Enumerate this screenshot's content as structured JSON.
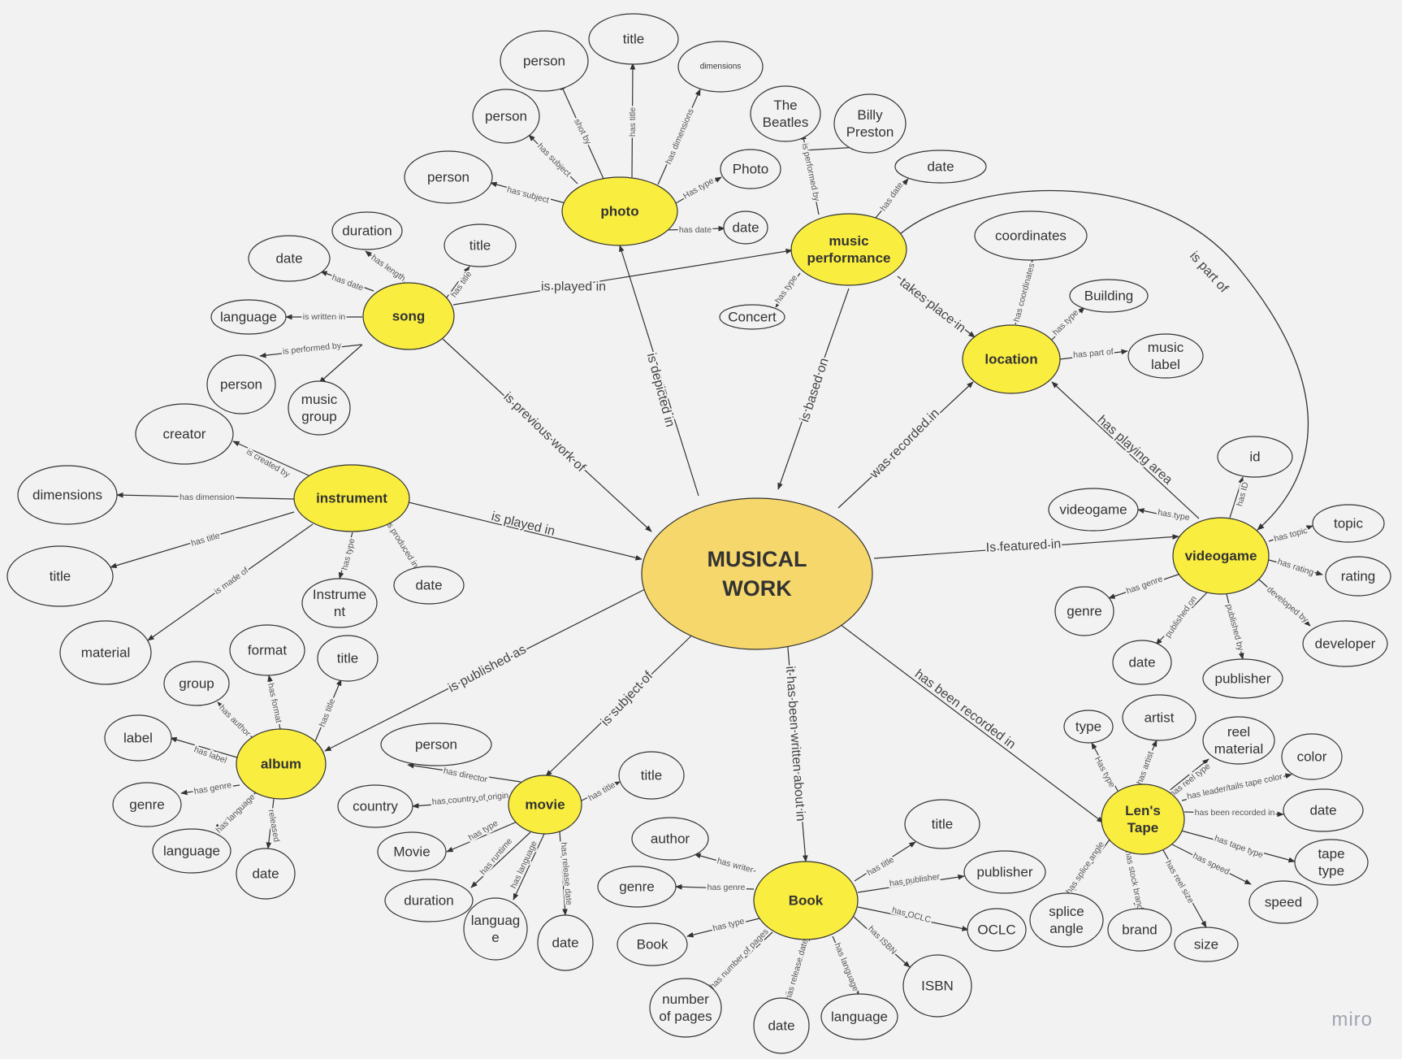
{
  "colors": {
    "background": "#f2f2f2",
    "hub_fill": "#f9ed3f",
    "center_fill": "#f5d76b",
    "node_fill": "#f2f2f2",
    "stroke": "#333333"
  },
  "watermark": "miro",
  "center": {
    "id": "musical_work",
    "lines": [
      "MUSICAL",
      "WORK"
    ]
  },
  "hubs": [
    {
      "id": "photo",
      "lines": [
        "photo"
      ]
    },
    {
      "id": "music_performance",
      "lines": [
        "music",
        "performance"
      ]
    },
    {
      "id": "song",
      "lines": [
        "song"
      ]
    },
    {
      "id": "location",
      "lines": [
        "location"
      ]
    },
    {
      "id": "instrument",
      "lines": [
        "instrument"
      ]
    },
    {
      "id": "videogame",
      "lines": [
        "videogame"
      ]
    },
    {
      "id": "album",
      "lines": [
        "album"
      ]
    },
    {
      "id": "movie",
      "lines": [
        "movie"
      ]
    },
    {
      "id": "book",
      "lines": [
        "Book"
      ]
    },
    {
      "id": "lens_tape",
      "lines": [
        "Len's",
        "Tape"
      ]
    }
  ],
  "nodes": [
    {
      "id": "ph_person1",
      "lines": [
        "person"
      ]
    },
    {
      "id": "ph_title",
      "lines": [
        "title"
      ]
    },
    {
      "id": "ph_dimensions",
      "lines": [
        "dimensions"
      ]
    },
    {
      "id": "ph_person2",
      "lines": [
        "person"
      ]
    },
    {
      "id": "ph_person3",
      "lines": [
        "person"
      ]
    },
    {
      "id": "ph_type",
      "lines": [
        "Photo"
      ]
    },
    {
      "id": "ph_date",
      "lines": [
        "date"
      ]
    },
    {
      "id": "mp_beatles",
      "lines": [
        "The",
        "Beatles"
      ]
    },
    {
      "id": "mp_billy",
      "lines": [
        "Billy",
        "Preston"
      ]
    },
    {
      "id": "mp_date",
      "lines": [
        "date"
      ]
    },
    {
      "id": "mp_concert",
      "lines": [
        "Concert"
      ]
    },
    {
      "id": "so_duration",
      "lines": [
        "duration"
      ]
    },
    {
      "id": "so_date",
      "lines": [
        "date"
      ]
    },
    {
      "id": "so_title",
      "lines": [
        "title"
      ]
    },
    {
      "id": "so_language",
      "lines": [
        "language"
      ]
    },
    {
      "id": "so_person",
      "lines": [
        "person"
      ]
    },
    {
      "id": "so_group",
      "lines": [
        "music",
        "group"
      ]
    },
    {
      "id": "lo_coords",
      "lines": [
        "coordinates"
      ]
    },
    {
      "id": "lo_building",
      "lines": [
        "Building"
      ]
    },
    {
      "id": "lo_label",
      "lines": [
        "music",
        "label"
      ]
    },
    {
      "id": "in_creator",
      "lines": [
        "creator"
      ]
    },
    {
      "id": "in_dimensions",
      "lines": [
        "dimensions"
      ]
    },
    {
      "id": "in_title",
      "lines": [
        "title"
      ]
    },
    {
      "id": "in_material",
      "lines": [
        "material"
      ]
    },
    {
      "id": "in_type",
      "lines": [
        "Instrume",
        "nt"
      ]
    },
    {
      "id": "in_date",
      "lines": [
        "date"
      ]
    },
    {
      "id": "vg_id",
      "lines": [
        "id"
      ]
    },
    {
      "id": "vg_type",
      "lines": [
        "videogame"
      ]
    },
    {
      "id": "vg_topic",
      "lines": [
        "topic"
      ]
    },
    {
      "id": "vg_rating",
      "lines": [
        "rating"
      ]
    },
    {
      "id": "vg_genre",
      "lines": [
        "genre"
      ]
    },
    {
      "id": "vg_date",
      "lines": [
        "date"
      ]
    },
    {
      "id": "vg_publisher",
      "lines": [
        "publisher"
      ]
    },
    {
      "id": "vg_developer",
      "lines": [
        "developer"
      ]
    },
    {
      "id": "al_format",
      "lines": [
        "format"
      ]
    },
    {
      "id": "al_title",
      "lines": [
        "title"
      ]
    },
    {
      "id": "al_group",
      "lines": [
        "group"
      ]
    },
    {
      "id": "al_label",
      "lines": [
        "label"
      ]
    },
    {
      "id": "al_genre",
      "lines": [
        "genre"
      ]
    },
    {
      "id": "al_language",
      "lines": [
        "language"
      ]
    },
    {
      "id": "al_date",
      "lines": [
        "date"
      ]
    },
    {
      "id": "mo_person",
      "lines": [
        "person"
      ]
    },
    {
      "id": "mo_title",
      "lines": [
        "title"
      ]
    },
    {
      "id": "mo_country",
      "lines": [
        "country"
      ]
    },
    {
      "id": "mo_type",
      "lines": [
        "Movie"
      ]
    },
    {
      "id": "mo_duration",
      "lines": [
        "duration"
      ]
    },
    {
      "id": "mo_language",
      "lines": [
        "languag",
        "e"
      ]
    },
    {
      "id": "mo_date",
      "lines": [
        "date"
      ]
    },
    {
      "id": "bk_author",
      "lines": [
        "author"
      ]
    },
    {
      "id": "bk_title",
      "lines": [
        "title"
      ]
    },
    {
      "id": "bk_genre",
      "lines": [
        "genre"
      ]
    },
    {
      "id": "bk_publisher",
      "lines": [
        "publisher"
      ]
    },
    {
      "id": "bk_type",
      "lines": [
        "Book"
      ]
    },
    {
      "id": "bk_ocl",
      "lines": [
        "OCLC"
      ]
    },
    {
      "id": "bk_pages",
      "lines": [
        "number",
        "of pages"
      ]
    },
    {
      "id": "bk_isbn",
      "lines": [
        "ISBN"
      ]
    },
    {
      "id": "bk_date",
      "lines": [
        "date"
      ]
    },
    {
      "id": "bk_language",
      "lines": [
        "language"
      ]
    },
    {
      "id": "lt_type",
      "lines": [
        "type"
      ]
    },
    {
      "id": "lt_artist",
      "lines": [
        "artist"
      ]
    },
    {
      "id": "lt_reel",
      "lines": [
        "reel",
        "material"
      ]
    },
    {
      "id": "lt_color",
      "lines": [
        "color"
      ]
    },
    {
      "id": "lt_date",
      "lines": [
        "date"
      ]
    },
    {
      "id": "lt_tapetype",
      "lines": [
        "tape",
        "type"
      ]
    },
    {
      "id": "lt_speed",
      "lines": [
        "speed"
      ]
    },
    {
      "id": "lt_size",
      "lines": [
        "size"
      ]
    },
    {
      "id": "lt_brand",
      "lines": [
        "brand"
      ]
    },
    {
      "id": "lt_splice",
      "lines": [
        "splice",
        "angle"
      ]
    }
  ],
  "edges": [
    {
      "from": "song",
      "to": "music_performance",
      "label": "is played in"
    },
    {
      "from": "song",
      "to": "musical_work",
      "label": "is previous work of"
    },
    {
      "from": "musical_work",
      "to": "photo",
      "label": "is depicted in"
    },
    {
      "from": "music_performance",
      "to": "musical_work",
      "label": "is based on"
    },
    {
      "from": "music_performance",
      "to": "location",
      "label": "takes place in"
    },
    {
      "from": "music_performance",
      "to": "videogame",
      "label": "is part of"
    },
    {
      "from": "musical_work",
      "to": "location",
      "label": "was recorded in"
    },
    {
      "from": "videogame",
      "to": "location",
      "label": "has playing area"
    },
    {
      "from": "musical_work",
      "to": "videogame",
      "label": "Is featured in"
    },
    {
      "from": "instrument",
      "to": "musical_work",
      "label": "is played in"
    },
    {
      "from": "musical_work",
      "to": "album",
      "label": "is published as"
    },
    {
      "from": "musical_work",
      "to": "movie",
      "label": "is subject of"
    },
    {
      "from": "musical_work",
      "to": "book",
      "label": "it has been written about in"
    },
    {
      "from": "musical_work",
      "to": "lens_tape",
      "label": "has been recorded in"
    },
    {
      "from": "photo",
      "to": "ph_person1",
      "label": "shot by"
    },
    {
      "from": "photo",
      "to": "ph_title",
      "label": "has title"
    },
    {
      "from": "photo",
      "to": "ph_dimensions",
      "label": "has dimensions"
    },
    {
      "from": "photo",
      "to": "ph_person2",
      "label": "has subject"
    },
    {
      "from": "photo",
      "to": "ph_person3",
      "label": "has subject"
    },
    {
      "from": "photo",
      "to": "ph_type",
      "label": "Has type"
    },
    {
      "from": "photo",
      "to": "ph_date",
      "label": "has date"
    },
    {
      "from": "music_performance",
      "to": "mp_beatles",
      "label": "is performed by"
    },
    {
      "from": "mp_beatles",
      "to": "mp_billy",
      "label": ""
    },
    {
      "from": "music_performance",
      "to": "mp_date",
      "label": "has date"
    },
    {
      "from": "music_performance",
      "to": "mp_concert",
      "label": "has type"
    },
    {
      "from": "song",
      "to": "so_duration",
      "label": "has length"
    },
    {
      "from": "song",
      "to": "so_date",
      "label": "has date"
    },
    {
      "from": "song",
      "to": "so_title",
      "label": "has title"
    },
    {
      "from": "song",
      "to": "so_language",
      "label": "is written in"
    },
    {
      "from": "song",
      "to": "so_person",
      "label": "is performed by"
    },
    {
      "from": "song",
      "to": "so_group",
      "label": ""
    },
    {
      "from": "location",
      "to": "lo_coords",
      "label": "has coordinates"
    },
    {
      "from": "location",
      "to": "lo_building",
      "label": "has type"
    },
    {
      "from": "location",
      "to": "lo_label",
      "label": "has part of"
    },
    {
      "from": "instrument",
      "to": "in_creator",
      "label": "is created by"
    },
    {
      "from": "instrument",
      "to": "in_dimensions",
      "label": "has dimension"
    },
    {
      "from": "instrument",
      "to": "in_title",
      "label": "has title"
    },
    {
      "from": "instrument",
      "to": "in_material",
      "label": "is made of"
    },
    {
      "from": "instrument",
      "to": "in_type",
      "label": "has type"
    },
    {
      "from": "instrument",
      "to": "in_date",
      "label": "is produced in"
    },
    {
      "from": "videogame",
      "to": "vg_id",
      "label": "has ID"
    },
    {
      "from": "videogame",
      "to": "vg_type",
      "label": "has type"
    },
    {
      "from": "videogame",
      "to": "vg_topic",
      "label": "has topic"
    },
    {
      "from": "videogame",
      "to": "vg_rating",
      "label": "has rating"
    },
    {
      "from": "videogame",
      "to": "vg_genre",
      "label": "has genre"
    },
    {
      "from": "videogame",
      "to": "vg_date",
      "label": "published on"
    },
    {
      "from": "videogame",
      "to": "vg_publisher",
      "label": "published by"
    },
    {
      "from": "videogame",
      "to": "vg_developer",
      "label": "developed by"
    },
    {
      "from": "album",
      "to": "al_format",
      "label": "has format"
    },
    {
      "from": "album",
      "to": "al_title",
      "label": "has title"
    },
    {
      "from": "album",
      "to": "al_group",
      "label": "has author"
    },
    {
      "from": "album",
      "to": "al_label",
      "label": "has label"
    },
    {
      "from": "album",
      "to": "al_genre",
      "label": "has genre"
    },
    {
      "from": "album",
      "to": "al_language",
      "label": "has language"
    },
    {
      "from": "album",
      "to": "al_date",
      "label": "released"
    },
    {
      "from": "movie",
      "to": "mo_person",
      "label": "has director"
    },
    {
      "from": "movie",
      "to": "mo_title",
      "label": "has title"
    },
    {
      "from": "movie",
      "to": "mo_country",
      "label": "has country of origin"
    },
    {
      "from": "movie",
      "to": "mo_type",
      "label": "has type"
    },
    {
      "from": "movie",
      "to": "mo_duration",
      "label": "has runtime"
    },
    {
      "from": "movie",
      "to": "mo_language",
      "label": "has language"
    },
    {
      "from": "movie",
      "to": "mo_date",
      "label": "has release date"
    },
    {
      "from": "book",
      "to": "bk_author",
      "label": "has writer"
    },
    {
      "from": "book",
      "to": "bk_title",
      "label": "has title"
    },
    {
      "from": "book",
      "to": "bk_genre",
      "label": "has genre"
    },
    {
      "from": "book",
      "to": "bk_publisher",
      "label": "has publisher"
    },
    {
      "from": "book",
      "to": "bk_type",
      "label": "has type"
    },
    {
      "from": "book",
      "to": "bk_ocl",
      "label": "has OCLC"
    },
    {
      "from": "book",
      "to": "bk_pages",
      "label": "has number of pages"
    },
    {
      "from": "book",
      "to": "bk_isbn",
      "label": "has ISBN"
    },
    {
      "from": "book",
      "to": "bk_date",
      "label": "has release date"
    },
    {
      "from": "book",
      "to": "bk_language",
      "label": "has language"
    },
    {
      "from": "lens_tape",
      "to": "lt_type",
      "label": "Has type"
    },
    {
      "from": "lens_tape",
      "to": "lt_artist",
      "label": "has artist"
    },
    {
      "from": "lens_tape",
      "to": "lt_reel",
      "label": "has reel type"
    },
    {
      "from": "lens_tape",
      "to": "lt_color",
      "label": "has leader/tails tape color"
    },
    {
      "from": "lens_tape",
      "to": "lt_date",
      "label": "has been recorded in"
    },
    {
      "from": "lens_tape",
      "to": "lt_tapetype",
      "label": "has tape type"
    },
    {
      "from": "lens_tape",
      "to": "lt_speed",
      "label": "has speed"
    },
    {
      "from": "lens_tape",
      "to": "lt_size",
      "label": "has reel size"
    },
    {
      "from": "lens_tape",
      "to": "lt_brand",
      "label": "has stock brand"
    },
    {
      "from": "lens_tape",
      "to": "lt_splice",
      "label": "has splice angle"
    }
  ]
}
